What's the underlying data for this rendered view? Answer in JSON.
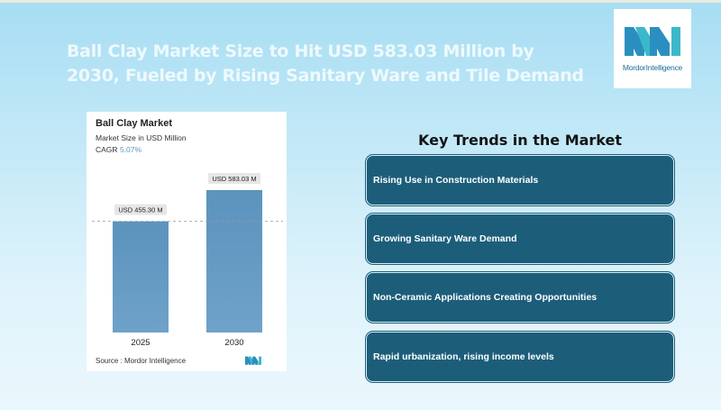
{
  "headline": "Ball Clay Market Size to Hit USD 583.03 Million by 2030, Fueled by Rising Sanitary Ware and Tile Demand",
  "logo": {
    "brand": "Mordor",
    "suffix": "Intelligence",
    "color": "#1d6f98"
  },
  "chart": {
    "title": "Ball Clay Market",
    "subtitle": "Market Size in USD Million",
    "cagr_label": "CAGR",
    "cagr_value": "5.07%",
    "source": "Source :  Mordor Intelligence"
  },
  "chart_data": {
    "type": "bar",
    "categories": [
      "2025",
      "2030"
    ],
    "values": [
      455.3,
      583.03
    ],
    "data_labels": [
      "USD 455.30 M",
      "USD 583.03 M"
    ],
    "ylim": [
      0,
      700
    ],
    "reference_line": 455.3,
    "bar_color_top": "#5b93bd",
    "bar_color_bottom": "#6fa2c9"
  },
  "trends": {
    "title": "Key Trends in the Market",
    "items": [
      "Rising Use in Construction Materials",
      "Growing Sanitary Ware Demand",
      "Non-Ceramic Applications Creating Opportunities",
      "Rapid urbanization, rising income levels"
    ]
  },
  "colors": {
    "trend_bg": "#1c5e7a",
    "accent": "#5b98c0"
  }
}
